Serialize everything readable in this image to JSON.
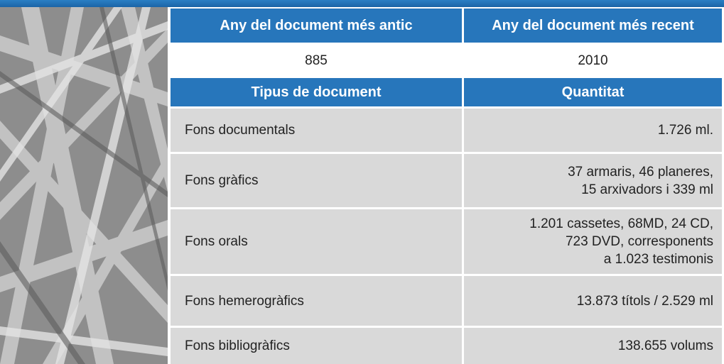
{
  "table": {
    "header": [
      "Any del document més antic",
      "Any del document més recent"
    ],
    "years": [
      "885",
      "2010"
    ],
    "subheader": [
      "Tipus de document",
      "Quantitat"
    ],
    "rows": [
      [
        "Fons documentals",
        "1.726 ml."
      ],
      [
        "Fons gràfics",
        "37 armaris, 46 planeres,\n15 arxivadors i 339 ml"
      ],
      [
        "Fons orals",
        "1.201 cassetes, 68MD, 24 CD,\n723 DVD, corresponents\na 1.023 testimonis"
      ],
      [
        "Fons hemerogràfics",
        "13.873 títols / 2.529 ml"
      ],
      [
        "Fons bibliogràfics",
        "138.655 volums"
      ]
    ]
  }
}
